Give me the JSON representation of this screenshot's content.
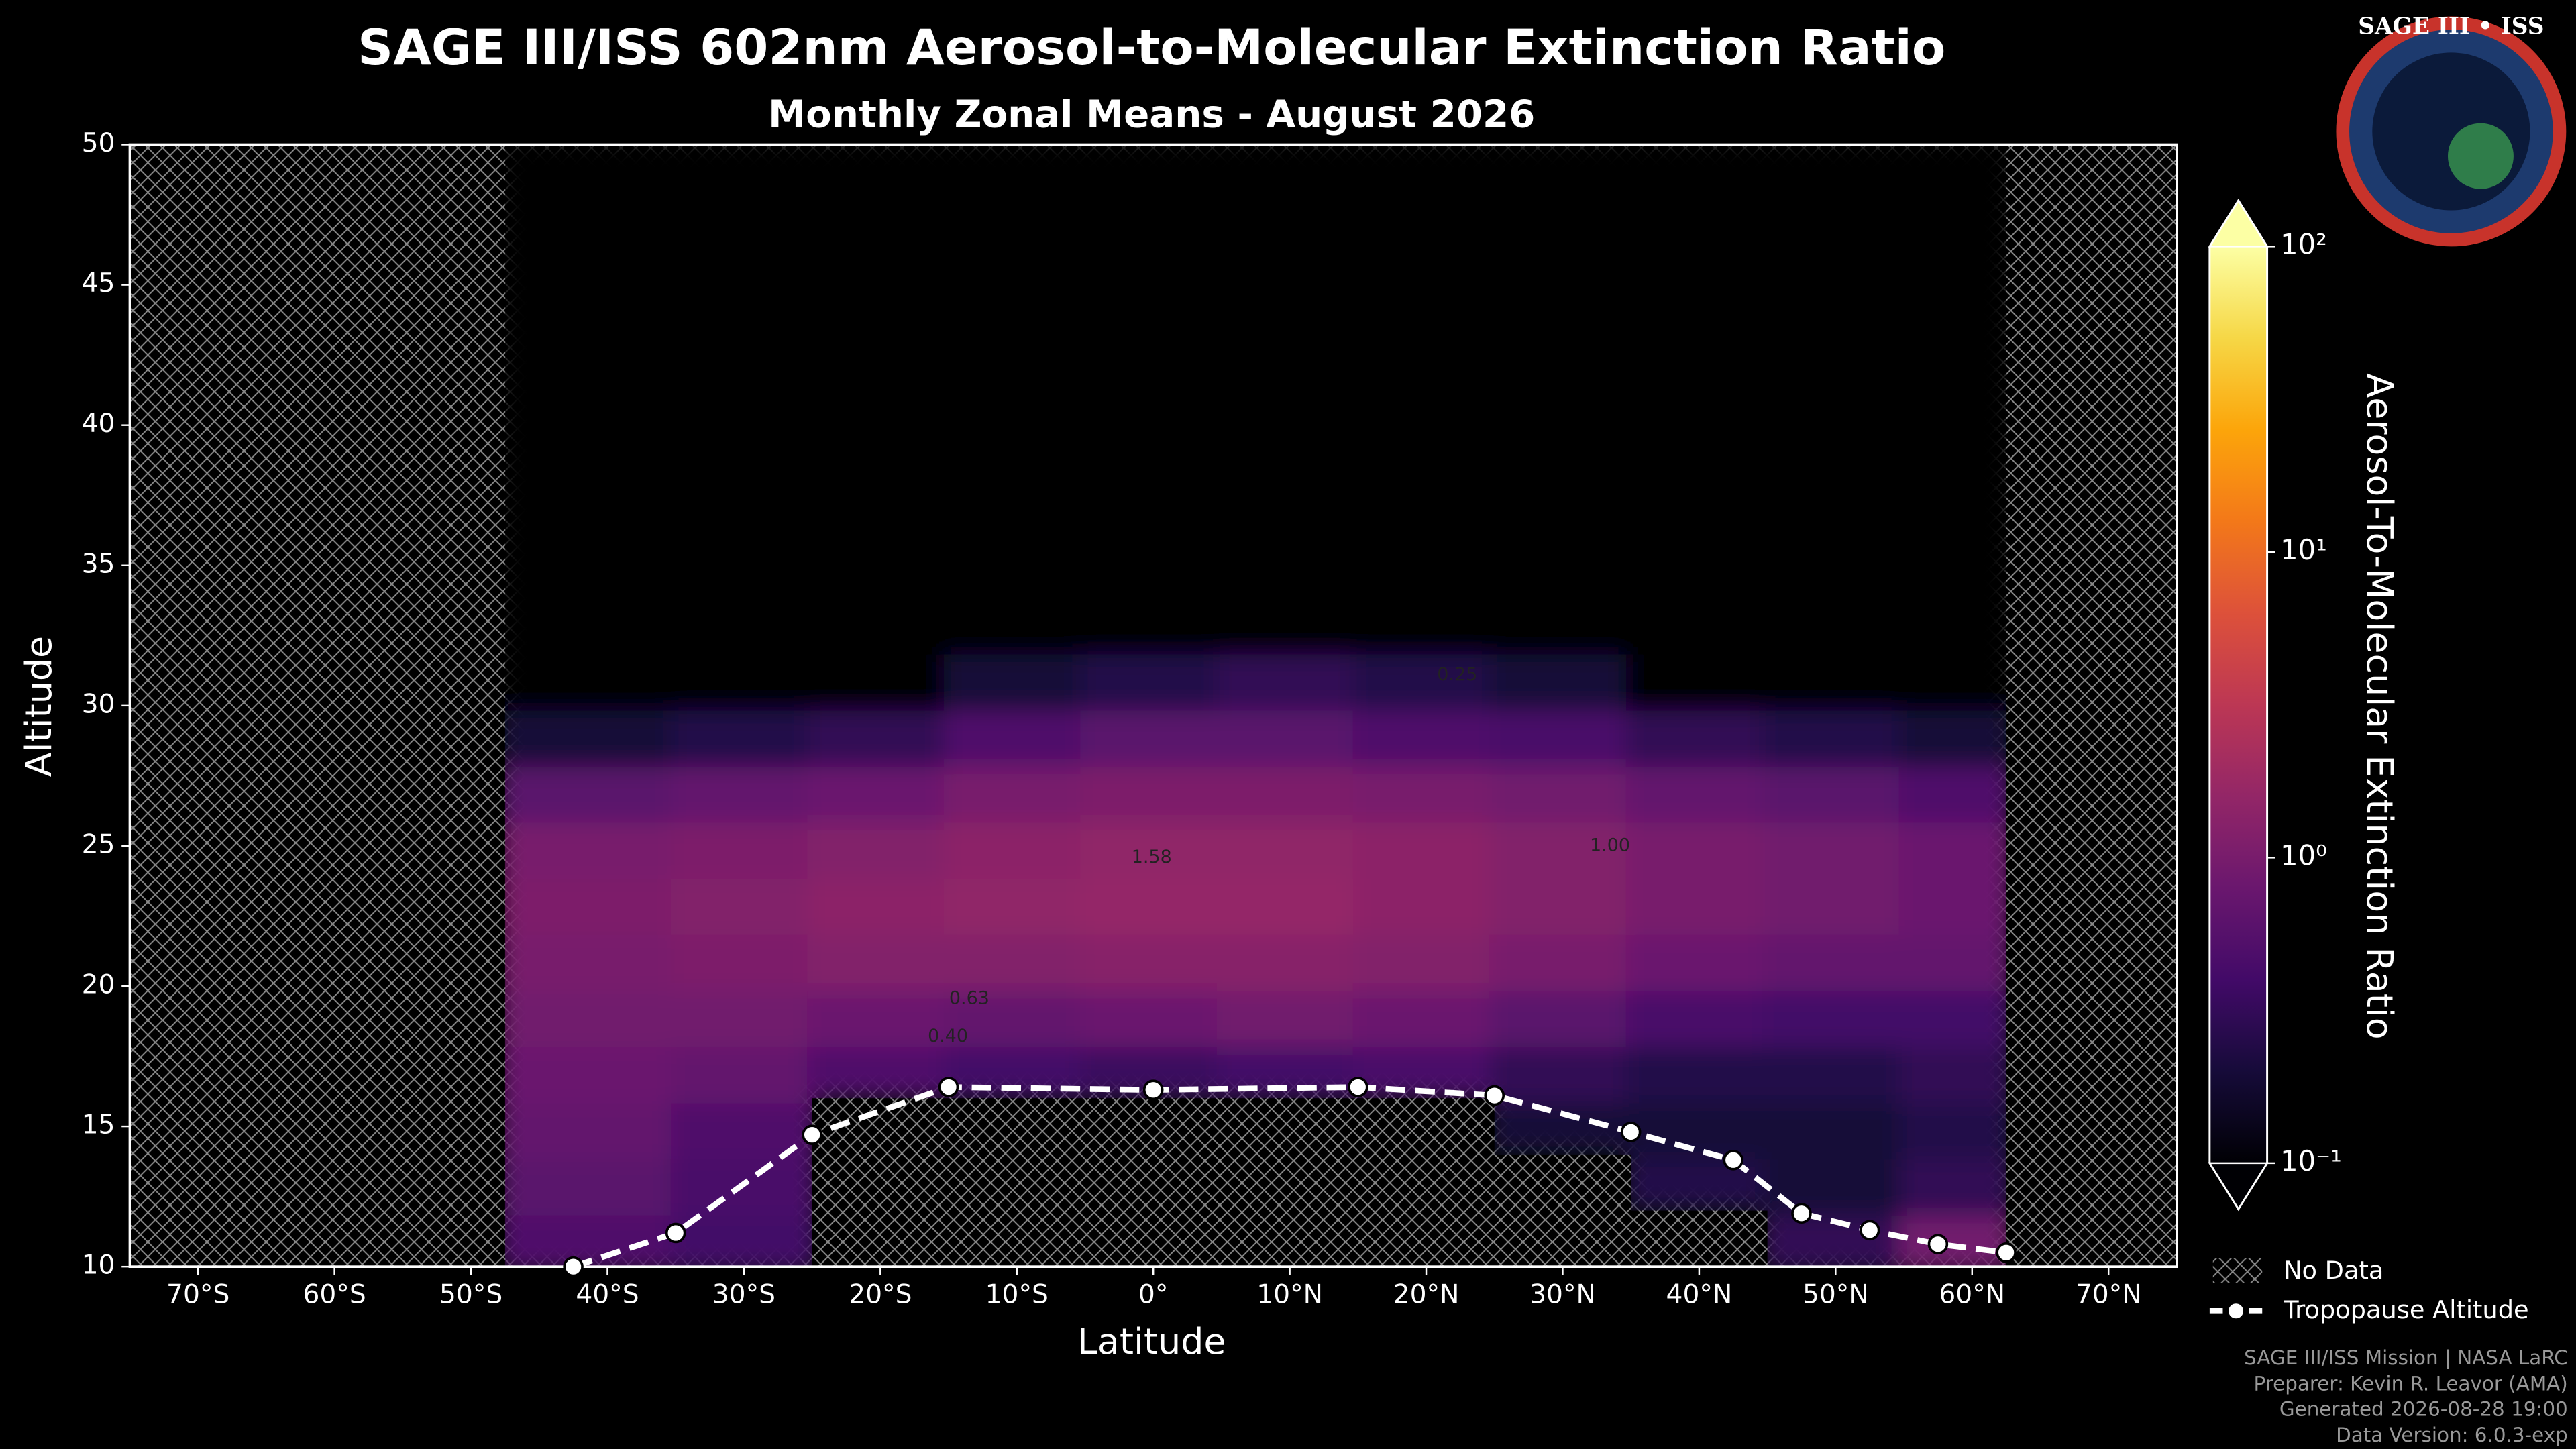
{
  "chart_data": {
    "type": "heatmap",
    "title": "SAGE III/ISS 602nm Aerosol-to-Molecular Extinction Ratio",
    "subtitle": "Monthly Zonal Means - August 2026",
    "x_label": "Latitude",
    "y_label": "Altitude",
    "colorbar_label": "Aerosol-To-Molecular Extinction Ratio",
    "xlim": [
      -75,
      75
    ],
    "xticks": [
      {
        "value": -70,
        "label": "70°S"
      },
      {
        "value": -60,
        "label": "60°S"
      },
      {
        "value": -50,
        "label": "50°S"
      },
      {
        "value": -40,
        "label": "40°S"
      },
      {
        "value": -30,
        "label": "30°S"
      },
      {
        "value": -20,
        "label": "20°S"
      },
      {
        "value": -10,
        "label": "10°S"
      },
      {
        "value": 0,
        "label": "0°"
      },
      {
        "value": 10,
        "label": "10°N"
      },
      {
        "value": 20,
        "label": "20°N"
      },
      {
        "value": 30,
        "label": "30°N"
      },
      {
        "value": 40,
        "label": "40°N"
      },
      {
        "value": 50,
        "label": "50°N"
      },
      {
        "value": 60,
        "label": "60°N"
      },
      {
        "value": 70,
        "label": "70°N"
      }
    ],
    "ylim": [
      10,
      50
    ],
    "yticks": [
      10,
      15,
      20,
      25,
      30,
      35,
      40,
      45,
      50
    ],
    "clim": [
      0.1,
      100
    ],
    "color_scale": "log",
    "colormap": "inferno",
    "cticks": [
      {
        "value": 0.1,
        "label": "10⁻¹"
      },
      {
        "value": 1,
        "label": "10⁰"
      },
      {
        "value": 10,
        "label": "10¹"
      },
      {
        "value": 100,
        "label": "10²"
      }
    ],
    "lat_edges": [
      -47.5,
      -35,
      -25,
      -15,
      -5,
      5,
      15,
      25,
      35,
      45,
      55,
      62.5
    ],
    "alt_edges": [
      10,
      12,
      14,
      16,
      18,
      20,
      22,
      24,
      26,
      28,
      30,
      32,
      50
    ],
    "z": [
      [
        0.5,
        0.4,
        null,
        null,
        null,
        null,
        null,
        null,
        null,
        0.3,
        0.9
      ],
      [
        0.6,
        0.45,
        null,
        null,
        null,
        null,
        null,
        null,
        0.25,
        0.2,
        0.3
      ],
      [
        0.7,
        0.5,
        null,
        null,
        null,
        null,
        null,
        0.2,
        0.2,
        0.2,
        0.25
      ],
      [
        0.8,
        0.7,
        0.5,
        0.4,
        0.35,
        0.4,
        0.45,
        0.3,
        0.25,
        0.25,
        0.3
      ],
      [
        0.9,
        0.9,
        0.8,
        0.7,
        0.8,
        0.9,
        0.8,
        0.6,
        0.45,
        0.4,
        0.4
      ],
      [
        1.0,
        1.1,
        1.2,
        1.2,
        1.3,
        1.3,
        1.2,
        1.0,
        0.8,
        0.7,
        0.7
      ],
      [
        1.1,
        1.2,
        1.4,
        1.5,
        1.6,
        1.6,
        1.4,
        1.2,
        1.0,
        0.9,
        0.8
      ],
      [
        1.0,
        1.1,
        1.2,
        1.4,
        1.5,
        1.5,
        1.4,
        1.2,
        1.0,
        0.9,
        0.8
      ],
      [
        0.6,
        0.7,
        0.8,
        1.0,
        1.1,
        1.1,
        1.0,
        0.9,
        0.7,
        0.6,
        0.5
      ],
      [
        0.2,
        0.25,
        0.3,
        0.5,
        0.6,
        0.6,
        0.5,
        0.45,
        0.3,
        0.25,
        0.2
      ],
      [
        0.08,
        0.08,
        0.1,
        0.2,
        0.25,
        0.3,
        0.25,
        0.2,
        0.1,
        0.08,
        0.08
      ],
      [
        0.05,
        0.05,
        0.05,
        0.05,
        0.05,
        0.05,
        0.05,
        0.05,
        0.05,
        0.05,
        0.05
      ]
    ],
    "contour_labels": [
      "1.58",
      "1.00",
      "0.63",
      "0.40",
      "0.25"
    ],
    "no_data_label": "No Data",
    "series": [
      {
        "name": "Tropopause Altitude",
        "color": "#ffffff",
        "x": [
          -42.5,
          -35,
          -25,
          -15,
          0,
          15,
          25,
          35,
          42.5,
          47.5,
          52.5,
          57.5,
          62.5
        ],
        "values": [
          10.0,
          11.2,
          14.7,
          16.4,
          16.3,
          16.4,
          16.1,
          14.8,
          13.8,
          11.9,
          11.3,
          10.8,
          10.5
        ]
      }
    ],
    "logo_text": "SAGE III • ISS",
    "footer": [
      "SAGE III/ISS Mission | NASA LaRC",
      "Preparer: Kevin R. Leavor (AMA)",
      "Generated 2026-08-28 19:00",
      "Data Version: 6.0.3-exp"
    ]
  }
}
